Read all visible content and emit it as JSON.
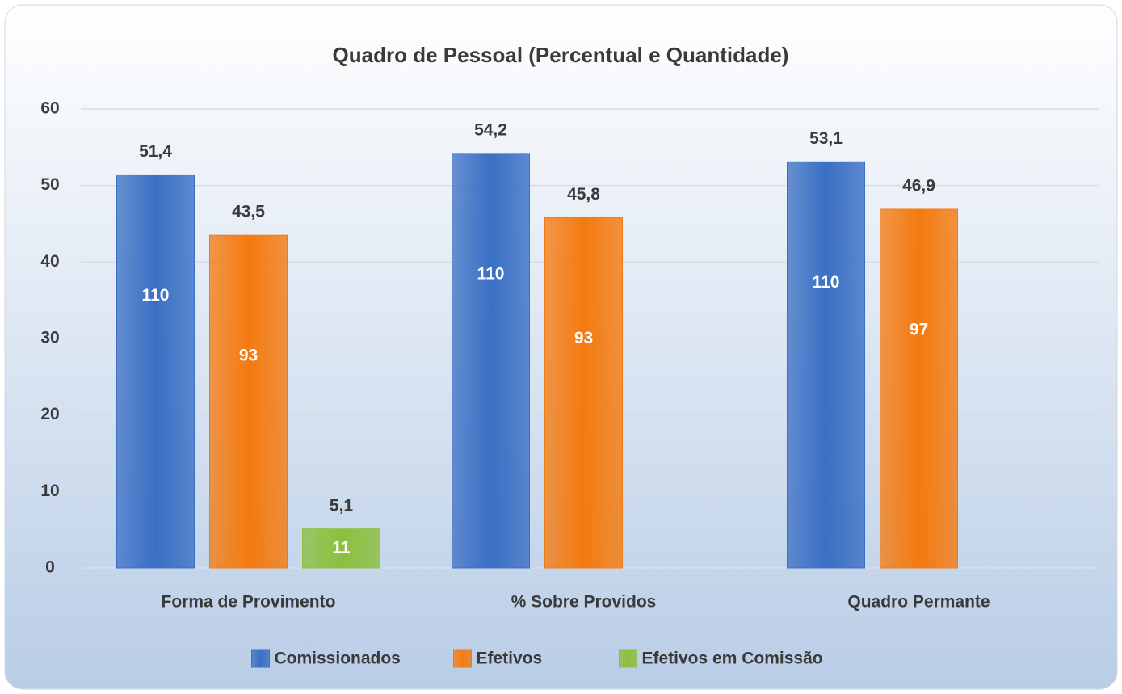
{
  "chart_data": {
    "type": "bar",
    "title": "Quadro de Pessoal (Percentual e Quantidade)",
    "categories": [
      "Forma de Provimento",
      "% Sobre Providos",
      "Quadro Permante"
    ],
    "series": [
      {
        "name": "Comissionados",
        "color": "#3a6fc4",
        "values": [
          51.4,
          54.2,
          53.1
        ],
        "value_labels": [
          "51,4",
          "54,2",
          "53,1"
        ],
        "counts": [
          110,
          110,
          110
        ]
      },
      {
        "name": "Efetivos",
        "color": "#f47a10",
        "values": [
          43.5,
          45.8,
          46.9
        ],
        "value_labels": [
          "43,5",
          "45,8",
          "46,9"
        ],
        "counts": [
          93,
          93,
          97
        ]
      },
      {
        "name": "Efetivos em Comissão",
        "color": "#8cbf3c",
        "values": [
          5.1,
          null,
          null
        ],
        "value_labels": [
          "5,1",
          null,
          null
        ],
        "counts": [
          11,
          null,
          null
        ]
      }
    ],
    "ylim": [
      0,
      60
    ],
    "yticks": [
      0,
      10,
      20,
      30,
      40,
      50,
      60
    ],
    "grid": true,
    "legend": "bottom"
  }
}
